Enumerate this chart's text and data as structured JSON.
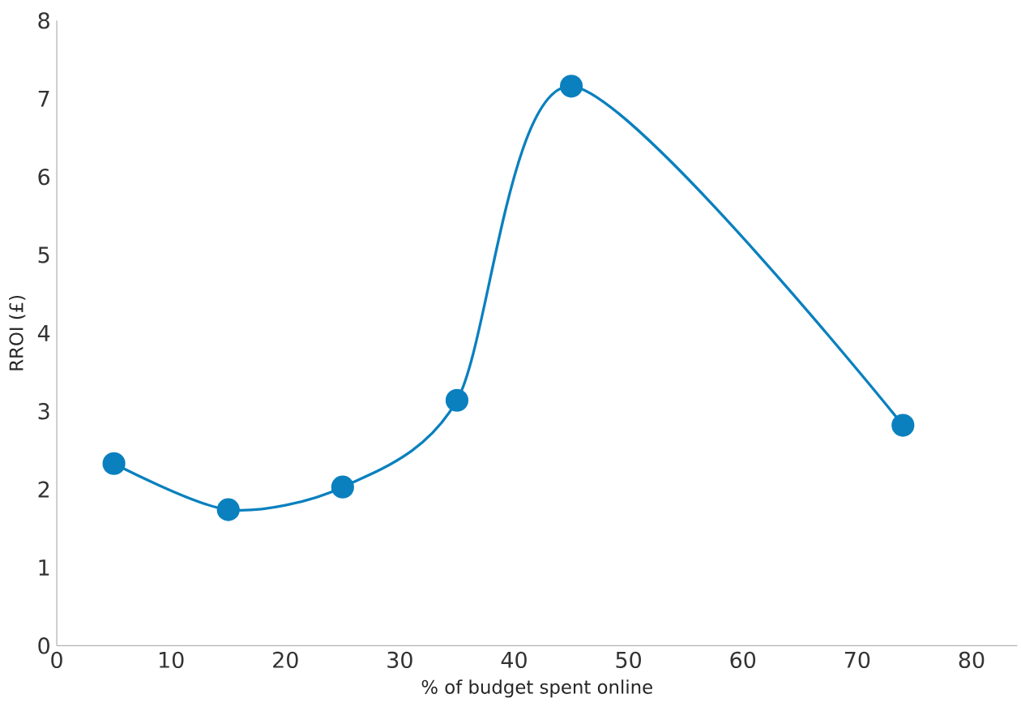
{
  "chart_data": {
    "type": "line",
    "xlabel": "% of budget spent online",
    "ylabel": "RROI (£)",
    "x": [
      5,
      15,
      25,
      35,
      45,
      74
    ],
    "series": [
      {
        "color": "#0a80be",
        "values": [
          2.33,
          1.74,
          2.03,
          3.14,
          7.16,
          2.82
        ]
      }
    ],
    "xlim": [
      0,
      84
    ],
    "xticks": [
      0,
      10,
      20,
      30,
      40,
      50,
      60,
      70,
      80
    ],
    "ylim": [
      0,
      8
    ],
    "yticks": [
      0,
      1,
      2,
      3,
      4,
      5,
      6,
      7,
      8
    ],
    "grid": false,
    "marker": "circle",
    "line_style": "solid"
  }
}
